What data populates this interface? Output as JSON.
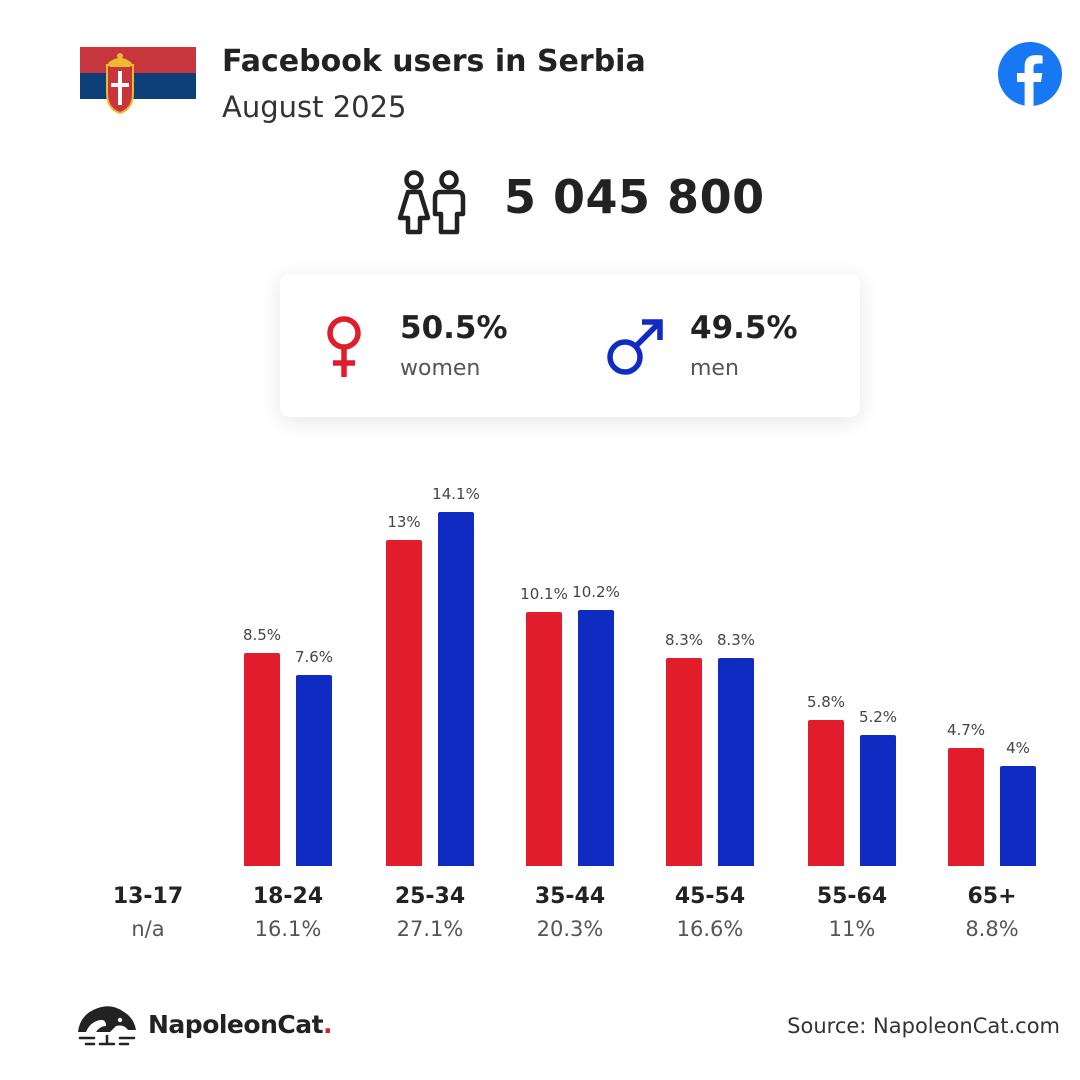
{
  "header": {
    "title": "Facebook users in Serbia",
    "date": "August 2025",
    "flag_icon": "serbia-flag-icon",
    "platform_icon": "facebook-logo-icon",
    "facebook_color": "#1877f2"
  },
  "total": {
    "value": "5 045 800",
    "icon": "users-icon"
  },
  "gender": {
    "women": {
      "percent": "50.5%",
      "label": "women",
      "icon": "female-symbol-icon",
      "color": "#e21d2b"
    },
    "men": {
      "percent": "49.5%",
      "label": "men",
      "icon": "male-symbol-icon",
      "color": "#0f2bc2"
    }
  },
  "chart_data": {
    "type": "bar",
    "categories": [
      "13-17",
      "18-24",
      "25-34",
      "35-44",
      "45-54",
      "55-64",
      "65+"
    ],
    "category_shares": [
      "n/a",
      "16.1%",
      "27.1%",
      "20.3%",
      "16.6%",
      "11%",
      "8.8%"
    ],
    "series": [
      {
        "color": "#e21d2b",
        "values": [
          null,
          8.5,
          13,
          10.1,
          8.3,
          5.8,
          4.7
        ],
        "labels": [
          "",
          "8.5%",
          "13%",
          "10.1%",
          "8.3%",
          "5.8%",
          "4.7%"
        ]
      },
      {
        "color": "#0f2bc2",
        "values": [
          null,
          7.6,
          14.1,
          10.2,
          8.3,
          5.2,
          4
        ],
        "labels": [
          "",
          "7.6%",
          "14.1%",
          "10.2%",
          "8.3%",
          "5.2%",
          "4%"
        ]
      }
    ],
    "unit": "%",
    "grid": false,
    "legend": "none"
  },
  "footer": {
    "brand_name": "NapoleonCat",
    "brand_dot": ".",
    "brand_icon": "napoleoncat-logo-icon",
    "source": "Source: NapoleonCat.com"
  }
}
